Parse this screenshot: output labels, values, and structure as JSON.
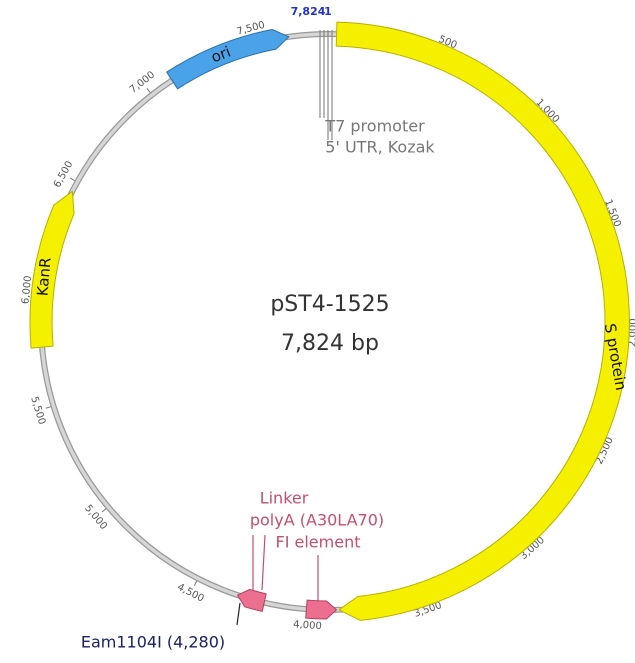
{
  "map": {
    "name": "pST4-1525",
    "length": "7,824 bp",
    "origin_labels": [
      "7,824",
      "1"
    ],
    "ticks": [
      "500",
      "1,000",
      "1,500",
      "2,000",
      "2,500",
      "3,000",
      "3,500",
      "4,000",
      "4,500",
      "5,000",
      "5,500",
      "6,000",
      "6,500",
      "7,000",
      "7,500"
    ],
    "features": [
      {
        "label": "S protein"
      },
      {
        "label": "ori"
      },
      {
        "label": "KanR"
      },
      {
        "label": "FI element"
      },
      {
        "label": "polyA (A30LA70)"
      },
      {
        "label": "Linker"
      }
    ],
    "annotations": [
      "T7 promoter",
      "5' UTR, Kozak",
      "Eam1104I (4,280)"
    ]
  }
}
